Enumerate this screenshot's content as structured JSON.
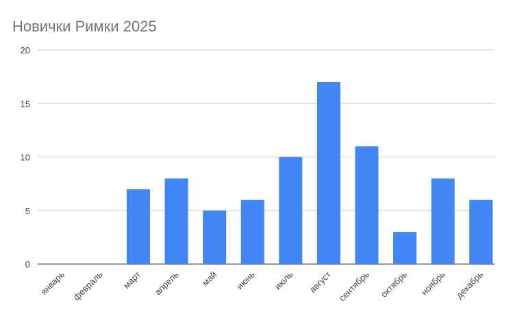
{
  "chart_data": {
    "type": "bar",
    "title": "Новички Римки 2025",
    "categories": [
      "январь",
      "февраль",
      "март",
      "апрель",
      "май",
      "июнь",
      "июль",
      "август",
      "сентябрь",
      "октябрь",
      "ноябрь",
      "декабрь"
    ],
    "values": [
      0,
      0,
      7,
      8,
      5,
      6,
      10,
      17,
      11,
      3,
      8,
      6
    ],
    "color": "#4285f4",
    "ylim": [
      0,
      20
    ],
    "yticks": [
      0,
      5,
      10,
      15,
      20
    ],
    "grid": true
  }
}
